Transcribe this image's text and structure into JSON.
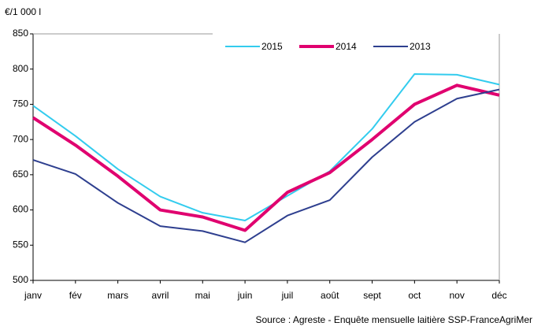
{
  "chart_data": {
    "type": "line",
    "y_label": "€/1 000 l",
    "categories": [
      "janv",
      "fév",
      "mars",
      "avril",
      "mai",
      "juin",
      "juil",
      "août",
      "sept",
      "oct",
      "nov",
      "déc"
    ],
    "series": [
      {
        "name": "2015",
        "color": "#33ccee",
        "values": [
          748,
          705,
          658,
          619,
          596,
          585,
          620,
          655,
          715,
          793,
          792,
          778
        ]
      },
      {
        "name": "2014",
        "color": "#e0006f",
        "values": [
          731,
          692,
          648,
          600,
          590,
          571,
          625,
          653,
          700,
          750,
          777,
          763
        ]
      },
      {
        "name": "2013",
        "color": "#2e3f8f",
        "values": [
          671,
          651,
          610,
          577,
          570,
          554,
          592,
          614,
          675,
          725,
          758,
          771
        ]
      }
    ],
    "ylim": [
      500,
      850
    ],
    "yticks": [
      500,
      550,
      600,
      650,
      700,
      750,
      800,
      850
    ],
    "source": "Source : Agreste - Enquête mensuelle laitière SSP-FranceAgriMer"
  }
}
